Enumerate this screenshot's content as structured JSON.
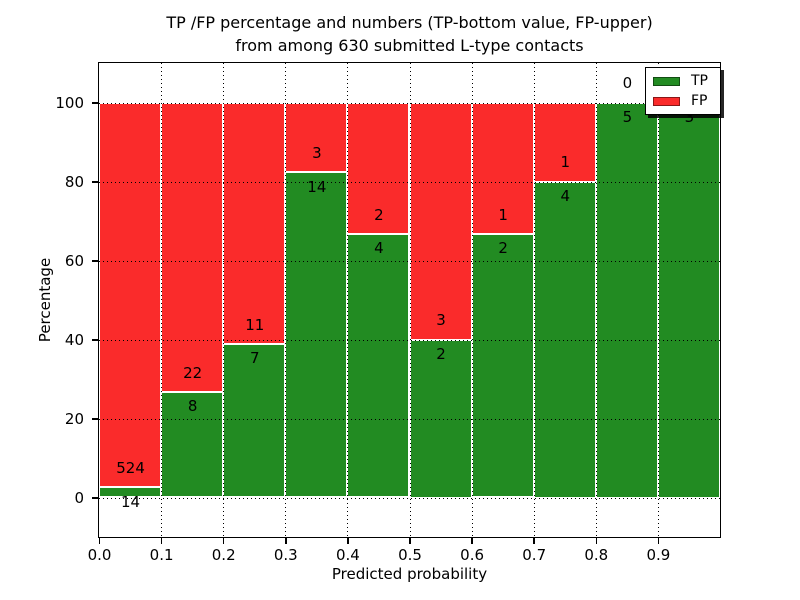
{
  "title": {
    "line1": "TP /FP percentage and numbers (TP-bottom value, FP-upper)",
    "line2": "from among 630 submitted L-type contacts"
  },
  "axes": {
    "xlabel": "Predicted probability",
    "ylabel": "Percentage",
    "xticks": [
      {
        "label": "0.0",
        "value": 0.0
      },
      {
        "label": "0.1",
        "value": 0.1
      },
      {
        "label": "0.2",
        "value": 0.2
      },
      {
        "label": "0.3",
        "value": 0.3
      },
      {
        "label": "0.4",
        "value": 0.4
      },
      {
        "label": "0.5",
        "value": 0.5
      },
      {
        "label": "0.6",
        "value": 0.6
      },
      {
        "label": "0.7",
        "value": 0.7
      },
      {
        "label": "0.8",
        "value": 0.8
      },
      {
        "label": "0.9",
        "value": 0.9
      }
    ],
    "yticks": [
      {
        "label": "0",
        "value": 0
      },
      {
        "label": "20",
        "value": 20
      },
      {
        "label": "40",
        "value": 40
      },
      {
        "label": "60",
        "value": 60
      },
      {
        "label": "80",
        "value": 80
      },
      {
        "label": "100",
        "value": 100
      }
    ]
  },
  "legend": {
    "items": [
      {
        "label": "TP",
        "color": "#228b22"
      },
      {
        "label": "FP",
        "color": "#fa2b2b"
      }
    ]
  },
  "colors": {
    "tp_green": "#228b22",
    "fp_red": "#fa2b2b",
    "grid": "#000000",
    "bar_edge": "#ffffff"
  },
  "chart_data": {
    "type": "bar",
    "stacked": true,
    "normalized_to_percent": true,
    "title": "TP /FP percentage and numbers (TP-bottom value, FP-upper) from among 630 submitted L-type contacts",
    "xlabel": "Predicted probability",
    "ylabel": "Percentage",
    "xlim": [
      0.0,
      1.0
    ],
    "ylim": [
      -10,
      110
    ],
    "grid": true,
    "legend_position": "upper right",
    "bin_width": 0.1,
    "categories": [
      "0.0-0.1",
      "0.1-0.2",
      "0.2-0.3",
      "0.3-0.4",
      "0.4-0.5",
      "0.5-0.6",
      "0.6-0.7",
      "0.7-0.8",
      "0.8-0.9",
      "0.9-1.0"
    ],
    "series": [
      {
        "name": "TP",
        "values": [
          14,
          8,
          7,
          14,
          4,
          2,
          2,
          4,
          5,
          3
        ]
      },
      {
        "name": "FP",
        "values": [
          524,
          22,
          11,
          3,
          2,
          3,
          1,
          1,
          0,
          0
        ]
      }
    ],
    "tp_percent": [
      2.6,
      26.67,
      38.89,
      82.35,
      66.67,
      40.0,
      66.67,
      80.0,
      100.0,
      100.0
    ],
    "total_contacts": 630
  }
}
